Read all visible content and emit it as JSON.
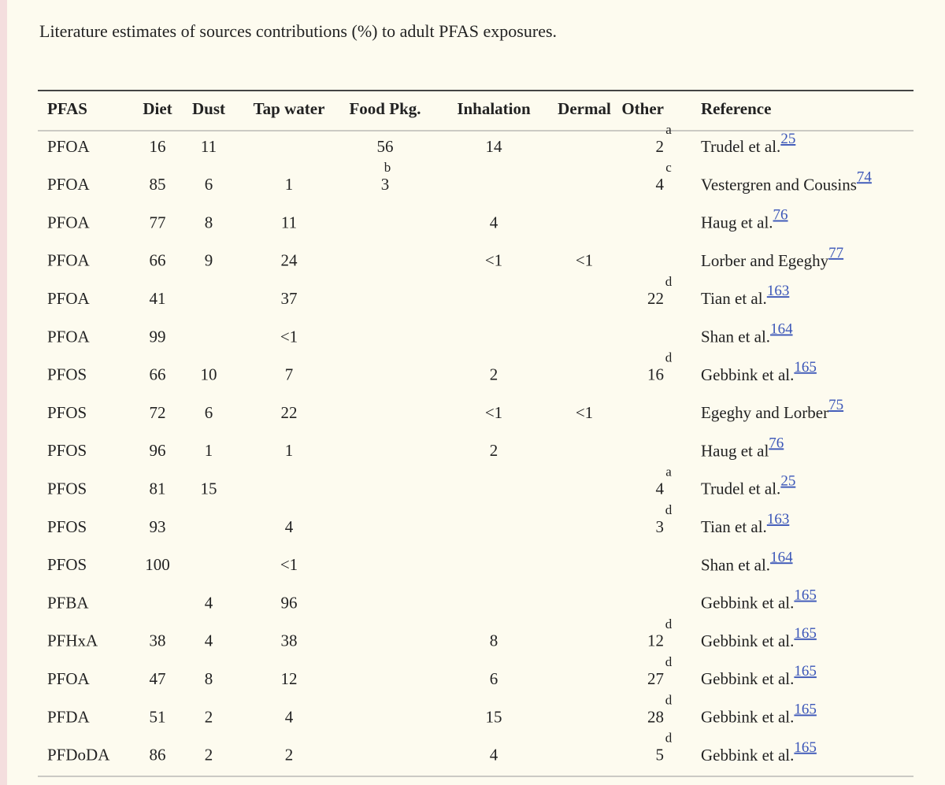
{
  "title": "Literature estimates of sources contributions (%) to adult PFAS exposures.",
  "table": {
    "headers": {
      "pfas": "PFAS",
      "diet": "Diet",
      "dust": "Dust",
      "tap": "Tap water",
      "food": "Food Pkg.",
      "inhalation": "Inhalation",
      "dermal": "Dermal",
      "other": "Other",
      "reference": "Reference"
    },
    "rows": [
      {
        "pfas": "PFOA",
        "diet": 16,
        "dust": 11,
        "food": 56,
        "inhalation": 14,
        "other": 2,
        "other_note": "a",
        "reference": "Trudel et al.",
        "ref": 25
      },
      {
        "pfas": "PFOA",
        "diet": 85,
        "dust": 6,
        "tap": 1,
        "food": 3,
        "food_note": "b",
        "other": 4,
        "other_note": "c",
        "reference": "Vestergren and Cousins",
        "ref": 74
      },
      {
        "pfas": "PFOA",
        "diet": 77,
        "dust": 8,
        "tap": 11,
        "inhalation": 4,
        "reference": "Haug et al.",
        "ref": 76
      },
      {
        "pfas": "PFOA",
        "diet": 66,
        "dust": 9,
        "tap": 24,
        "inhalation": "<1",
        "dermal": "<1",
        "reference": "Lorber and Egeghy",
        "ref": 77
      },
      {
        "pfas": "PFOA",
        "diet": 41,
        "tap": 37,
        "other": 22,
        "other_note": "d",
        "reference": "Tian et al.",
        "ref": 163
      },
      {
        "pfas": "PFOA",
        "diet": 99,
        "tap": "<1",
        "reference": "Shan et al.",
        "ref": 164
      },
      {
        "pfas": "PFOS",
        "diet": 66,
        "dust": 10,
        "tap": 7,
        "inhalation": 2,
        "other": 16,
        "other_note": "d",
        "reference": "Gebbink et al.",
        "ref": 165
      },
      {
        "pfas": "PFOS",
        "diet": 72,
        "dust": 6,
        "tap": 22,
        "inhalation": "<1",
        "dermal": "<1",
        "reference": "Egeghy and Lorber",
        "ref": 75
      },
      {
        "pfas": "PFOS",
        "diet": 96,
        "dust": 1,
        "tap": 1,
        "inhalation": 2,
        "reference": "Haug et al",
        "ref": 76
      },
      {
        "pfas": "PFOS",
        "diet": 81,
        "dust": 15,
        "other": 4,
        "other_note": "a",
        "reference": "Trudel et al.",
        "ref": 25
      },
      {
        "pfas": "PFOS",
        "diet": 93,
        "tap": 4,
        "other": 3,
        "other_note": "d",
        "reference": "Tian et al.",
        "ref": 163
      },
      {
        "pfas": "PFOS",
        "diet": 100,
        "tap": "<1",
        "reference": "Shan et al.",
        "ref": 164
      },
      {
        "pfas": "PFBA",
        "dust": 4,
        "tap": 96,
        "reference": "Gebbink et al.",
        "ref": 165
      },
      {
        "pfas": "PFHxA",
        "diet": 38,
        "dust": 4,
        "tap": 38,
        "inhalation": 8,
        "other": 12,
        "other_note": "d",
        "reference": "Gebbink et al.",
        "ref": 165
      },
      {
        "pfas": "PFOA",
        "diet": 47,
        "dust": 8,
        "tap": 12,
        "inhalation": 6,
        "other": 27,
        "other_note": "d",
        "reference": "Gebbink et al.",
        "ref": 165
      },
      {
        "pfas": "PFDA",
        "diet": 51,
        "dust": 2,
        "tap": 4,
        "inhalation": 15,
        "other": 28,
        "other_note": "d",
        "reference": "Gebbink et al.",
        "ref": 165
      },
      {
        "pfas": "PFDoDA",
        "diet": 86,
        "dust": 2,
        "tap": 2,
        "inhalation": 4,
        "other": 5,
        "other_note": "d",
        "reference": "Gebbink et al.",
        "ref": 165
      }
    ]
  }
}
